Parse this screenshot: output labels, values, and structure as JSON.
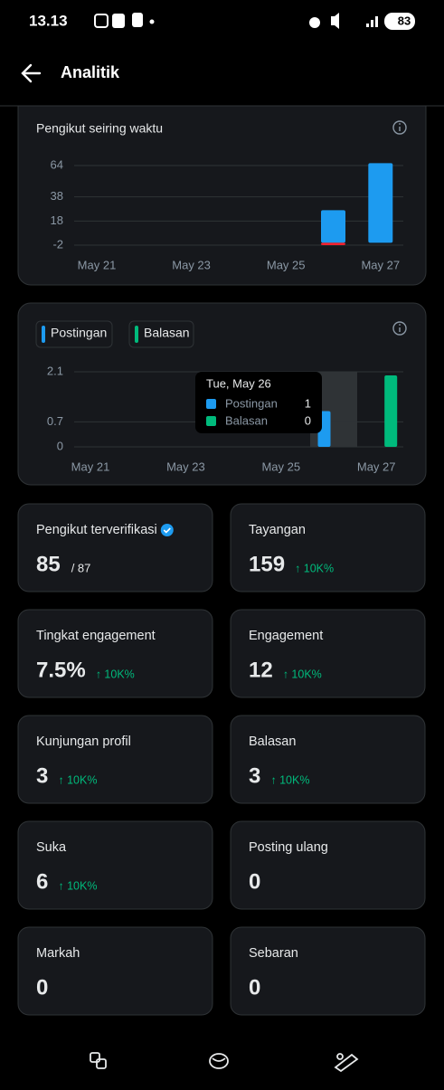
{
  "status_bar": {
    "time": "13.13",
    "battery": "83"
  },
  "header": {
    "title": "Analitik"
  },
  "chart_data": [
    {
      "type": "bar",
      "title": "Pengikut seiring waktu",
      "categories": [
        "May 21",
        null,
        "May 23",
        null,
        "May 25",
        null,
        "May 27"
      ],
      "series": [
        {
          "color": "#1d9bf0",
          "values": [
            0,
            0,
            0,
            0,
            0,
            27,
            66
          ]
        },
        {
          "color": "#f4212e",
          "values": [
            0,
            0,
            0,
            0,
            0,
            -2,
            0
          ]
        }
      ],
      "ylim": [
        -5,
        70
      ],
      "yticks": [
        -2,
        18,
        38,
        64
      ],
      "grid": true
    },
    {
      "type": "bar",
      "categories": [
        "May 21",
        null,
        "May 23",
        null,
        "May 25",
        null,
        "May 27"
      ],
      "series": [
        {
          "name": "Postingan",
          "color": "#1d9bf0",
          "values": [
            0,
            0,
            0,
            0,
            0,
            1,
            0
          ]
        },
        {
          "name": "Balasan",
          "color": "#00ba7c",
          "values": [
            0,
            0,
            0,
            0,
            0,
            0,
            2
          ]
        }
      ],
      "ylim": [
        0,
        2.1
      ],
      "yticks": [
        0,
        0.7,
        2.1
      ],
      "grid": true,
      "tooltip": {
        "title": "Tue, May 26"
      }
    }
  ],
  "stats": [
    {
      "label": "Pengikut terverifikasi",
      "value": "85",
      "total": "/ 87"
    },
    {
      "label": "Tayangan",
      "value": "159",
      "change": "↑ 10K%"
    },
    {
      "label": "Tingkat engagement",
      "value": "7.5%",
      "change": "↑ 10K%"
    },
    {
      "label": "Engagement",
      "value": "12",
      "change": "↑ 10K%"
    },
    {
      "label": "Kunjungan profil",
      "value": "3",
      "change": "↑ 10K%"
    },
    {
      "label": "Balasan",
      "value": "3",
      "change": "↑ 10K%"
    },
    {
      "label": "Suka",
      "value": "6",
      "change": "↑ 10K%"
    },
    {
      "label": "Posting ulang",
      "value": "0"
    },
    {
      "label": "Markah",
      "value": "0"
    },
    {
      "label": "Sebaran",
      "value": "0"
    }
  ]
}
